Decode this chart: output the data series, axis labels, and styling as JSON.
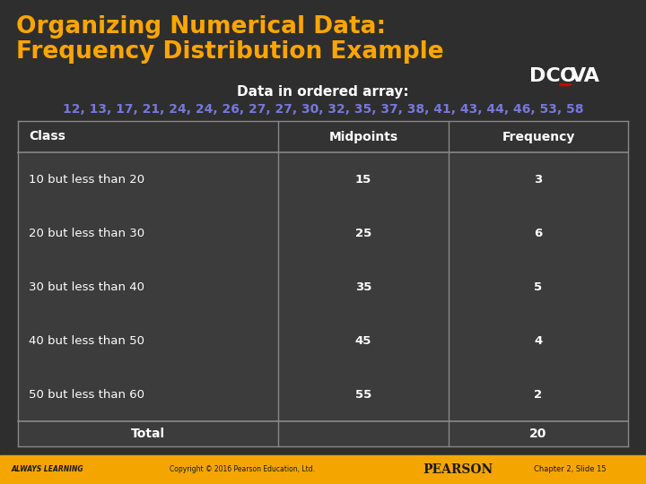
{
  "title_line1": "Organizing Numerical Data:",
  "title_line2": "Frequency Distribution Example",
  "title_color": "#FFA500",
  "bg_color": "#2E2E2E",
  "subtitle": "Data in ordered array:",
  "subtitle_color": "#FFFFFF",
  "array_text": "12, 13, 17, 21, 24, 24, 26, 27, 27, 30, 32, 35, 37, 38, 41, 43, 44, 46, 53, 58",
  "array_color": "#7777DD",
  "table_header": [
    "Class",
    "Midpoints",
    "Frequency"
  ],
  "table_rows": [
    [
      "10 but less than 20",
      "15",
      "3"
    ],
    [
      "20 but less than 30",
      "25",
      "6"
    ],
    [
      "30 but less than 40",
      "35",
      "5"
    ],
    [
      "40 but less than 50",
      "45",
      "4"
    ],
    [
      "50 but less than 60",
      "55",
      "2"
    ],
    [
      "Total",
      "",
      "20"
    ]
  ],
  "table_text_color": "#FFFFFF",
  "table_border_color": "#888888",
  "table_bg_color": "#3C3C3C",
  "table_header_bg": "#333333",
  "footer_left": "ALWAYS LEARNING",
  "footer_copy": "Copyright © 2016 Pearson Education, Ltd.",
  "footer_pearson": "PEARSON",
  "footer_chapter": "Chapter 2, Slide 15",
  "footer_text_color": "#1A1A1A",
  "footer_bg": "#F5A500",
  "dcova_dc": "DC",
  "dcova_o": "O",
  "dcova_va": "VA",
  "dcova_color": "#FFFFFF",
  "dcova_o_underline": "#CC0000"
}
